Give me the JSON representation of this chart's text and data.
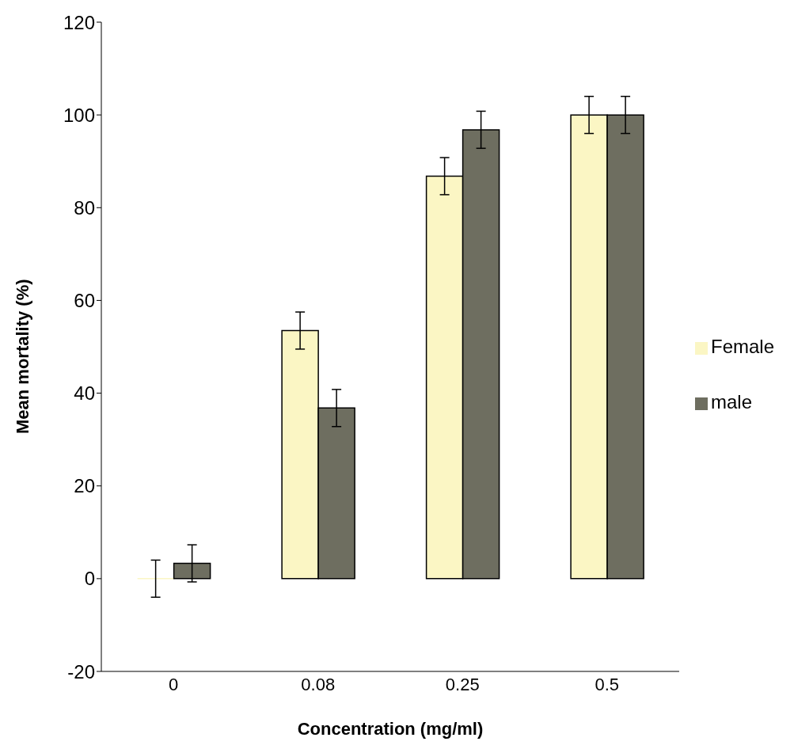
{
  "chart_data": {
    "type": "bar",
    "xlabel": "Concentration (mg/ml)",
    "ylabel": "Mean mortality (%)",
    "categories": [
      "0",
      "0.08",
      "0.25",
      "0.5"
    ],
    "series": [
      {
        "name": "Female",
        "color": "#fbf6c4",
        "values": [
          0,
          53.5,
          86.8,
          100
        ],
        "errors": [
          4,
          4,
          4,
          4
        ]
      },
      {
        "name": "male",
        "color": "#6e6e60",
        "values": [
          3.3,
          36.8,
          96.8,
          100
        ],
        "errors": [
          4,
          4,
          4,
          4
        ]
      }
    ],
    "ylim": [
      -20,
      120
    ],
    "yticks": [
      -20,
      0,
      20,
      40,
      60,
      80,
      100,
      120
    ],
    "grid": false,
    "legend": "right"
  }
}
